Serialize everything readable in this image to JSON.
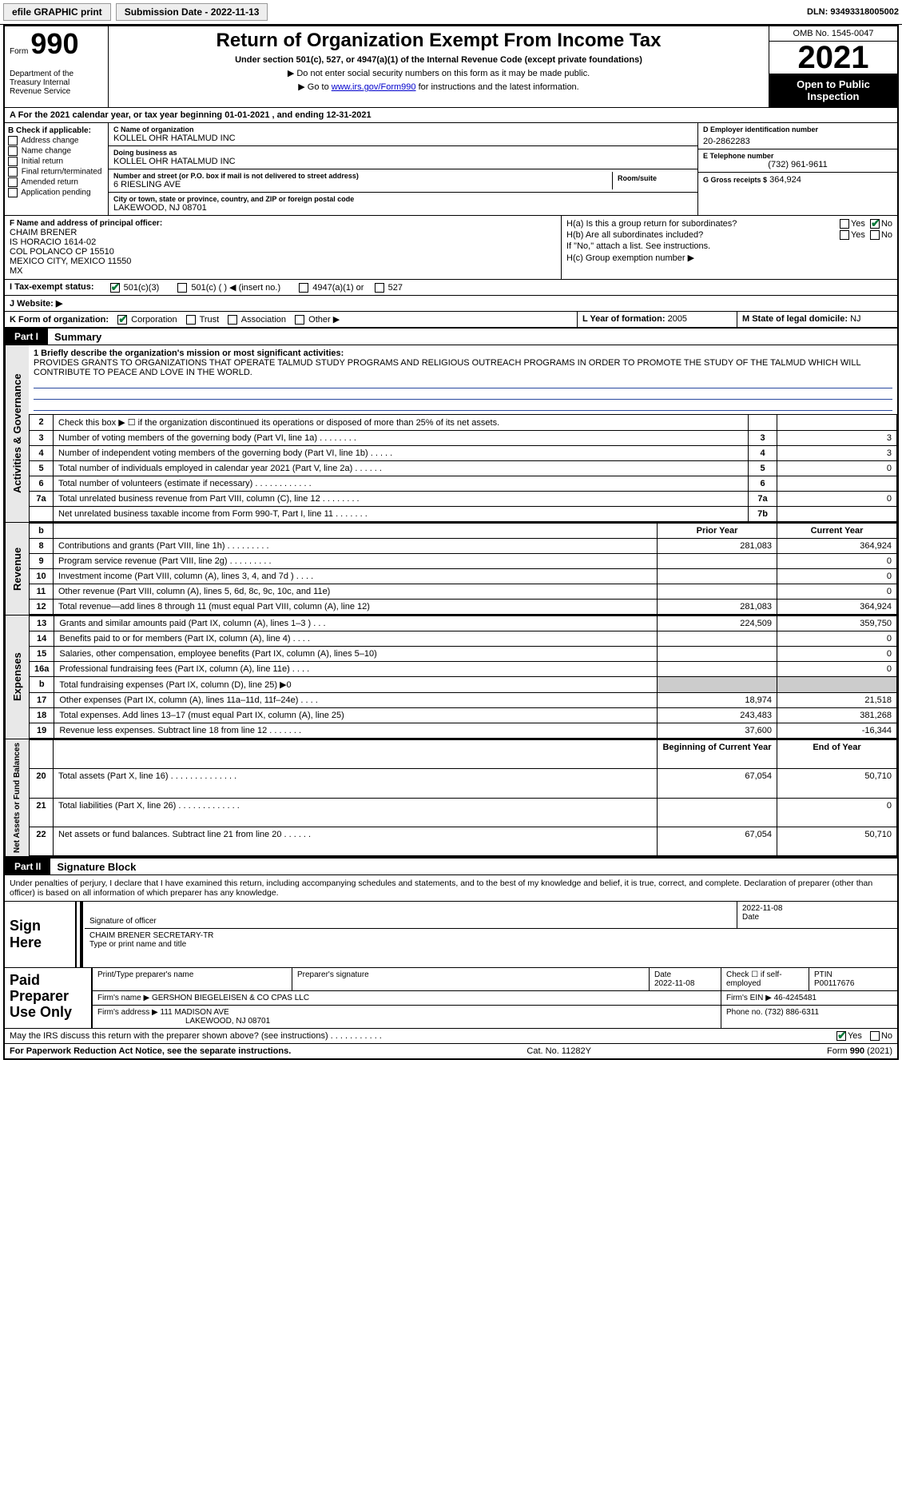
{
  "topbar": {
    "efile": "efile GRAPHIC print",
    "submission": "Submission Date - 2022-11-13",
    "dln_label": "DLN:",
    "dln": "93493318005002"
  },
  "header": {
    "form_label": "Form",
    "form_number": "990",
    "dept": "Department of the Treasury Internal Revenue Service",
    "title": "Return of Organization Exempt From Income Tax",
    "subtitle": "Under section 501(c), 527, or 4947(a)(1) of the Internal Revenue Code (except private foundations)",
    "instr1": "▶ Do not enter social security numbers on this form as it may be made public.",
    "instr2_pre": "▶ Go to ",
    "instr2_link": "www.irs.gov/Form990",
    "instr2_post": " for instructions and the latest information.",
    "omb": "OMB No. 1545-0047",
    "year": "2021",
    "open_public": "Open to Public Inspection"
  },
  "cal_year": "A For the 2021 calendar year, or tax year beginning 01-01-2021   , and ending 12-31-2021",
  "box_b": {
    "head": "B Check if applicable:",
    "items": [
      "Address change",
      "Name change",
      "Initial return",
      "Final return/terminated",
      "Amended return",
      "Application pending"
    ]
  },
  "box_c": {
    "name_lbl": "C Name of organization",
    "name": "KOLLEL OHR HATALMUD INC",
    "dba_lbl": "Doing business as",
    "dba": "KOLLEL OHR HATALMUD INC",
    "street_lbl": "Number and street (or P.O. box if mail is not delivered to street address)",
    "street": "6 RIESLING AVE",
    "room_lbl": "Room/suite",
    "city_lbl": "City or town, state or province, country, and ZIP or foreign postal code",
    "city": "LAKEWOOD, NJ  08701"
  },
  "box_d": {
    "lbl": "D Employer identification number",
    "val": "20-2862283"
  },
  "box_e": {
    "lbl": "E Telephone number",
    "val": "(732) 961-9611"
  },
  "box_g": {
    "lbl": "G Gross receipts $",
    "val": "364,924"
  },
  "box_f": {
    "lbl": "F  Name and address of principal officer:",
    "lines": [
      "CHAIM BRENER",
      "IS HORACIO 1614-02",
      "COL POLANCO CP 15510",
      "MEXICO CITY, MEXICO  11550",
      "MX"
    ]
  },
  "box_h": {
    "ha": "H(a)  Is this a group return for subordinates?",
    "hb": "H(b)  Are all subordinates included?",
    "hb_note": "If \"No,\" attach a list. See instructions.",
    "hc": "H(c)  Group exemption number ▶",
    "yes": "Yes",
    "no": "No"
  },
  "box_i": {
    "lbl": "I   Tax-exempt status:",
    "opts": [
      "501(c)(3)",
      "501(c) (  ) ◀ (insert no.)",
      "4947(a)(1) or",
      "527"
    ]
  },
  "box_j": {
    "lbl": "J  Website: ▶"
  },
  "box_k": {
    "lbl": "K Form of organization:",
    "opts": [
      "Corporation",
      "Trust",
      "Association",
      "Other ▶"
    ]
  },
  "box_l": {
    "lbl": "L Year of formation:",
    "val": "2005"
  },
  "box_m": {
    "lbl": "M State of legal domicile:",
    "val": "NJ"
  },
  "part1": {
    "tab": "Part I",
    "title": "Summary"
  },
  "mission": {
    "q1": "1  Briefly describe the organization's mission or most significant activities:",
    "text": "PROVIDES GRANTS TO ORGANIZATIONS THAT OPERATE TALMUD STUDY PROGRAMS AND RELIGIOUS OUTREACH PROGRAMS IN ORDER TO PROMOTE THE STUDY OF THE TALMUD WHICH WILL CONTRIBUTE TO PEACE AND LOVE IN THE WORLD."
  },
  "lines_ag": [
    {
      "n": "2",
      "t": "Check this box ▶ ☐  if the organization discontinued its operations or disposed of more than 25% of its net assets.",
      "mini": "",
      "v": ""
    },
    {
      "n": "3",
      "t": "Number of voting members of the governing body (Part VI, line 1a)   .   .   .   .   .   .   .   .",
      "mini": "3",
      "v": "3"
    },
    {
      "n": "4",
      "t": "Number of independent voting members of the governing body (Part VI, line 1b)   .   .   .   .   .",
      "mini": "4",
      "v": "3"
    },
    {
      "n": "5",
      "t": "Total number of individuals employed in calendar year 2021 (Part V, line 2a)   .   .   .   .   .   .",
      "mini": "5",
      "v": "0"
    },
    {
      "n": "6",
      "t": "Total number of volunteers (estimate if necessary)   .   .   .   .   .   .   .   .   .   .   .   .",
      "mini": "6",
      "v": ""
    },
    {
      "n": "7a",
      "t": "Total unrelated business revenue from Part VIII, column (C), line 12   .   .   .   .   .   .   .   .",
      "mini": "7a",
      "v": "0"
    },
    {
      "n": "",
      "t": "Net unrelated business taxable income from Form 990-T, Part I, line 11   .   .   .   .   .   .   .",
      "mini": "7b",
      "v": ""
    }
  ],
  "col_headers": {
    "b": "b",
    "prior": "Prior Year",
    "current": "Current Year"
  },
  "lines_rev": [
    {
      "n": "8",
      "t": "Contributions and grants (Part VIII, line 1h)   .   .   .   .   .   .   .   .   .",
      "p": "281,083",
      "c": "364,924"
    },
    {
      "n": "9",
      "t": "Program service revenue (Part VIII, line 2g)   .   .   .   .   .   .   .   .   .",
      "p": "",
      "c": "0"
    },
    {
      "n": "10",
      "t": "Investment income (Part VIII, column (A), lines 3, 4, and 7d )   .   .   .   .",
      "p": "",
      "c": "0"
    },
    {
      "n": "11",
      "t": "Other revenue (Part VIII, column (A), lines 5, 6d, 8c, 9c, 10c, and 11e)",
      "p": "",
      "c": "0"
    },
    {
      "n": "12",
      "t": "Total revenue—add lines 8 through 11 (must equal Part VIII, column (A), line 12)",
      "p": "281,083",
      "c": "364,924"
    }
  ],
  "lines_exp": [
    {
      "n": "13",
      "t": "Grants and similar amounts paid (Part IX, column (A), lines 1–3 )   .   .   .",
      "p": "224,509",
      "c": "359,750"
    },
    {
      "n": "14",
      "t": "Benefits paid to or for members (Part IX, column (A), line 4)   .   .   .   .",
      "p": "",
      "c": "0"
    },
    {
      "n": "15",
      "t": "Salaries, other compensation, employee benefits (Part IX, column (A), lines 5–10)",
      "p": "",
      "c": "0"
    },
    {
      "n": "16a",
      "t": "Professional fundraising fees (Part IX, column (A), line 11e)   .   .   .   .",
      "p": "",
      "c": "0"
    },
    {
      "n": "b",
      "t": "Total fundraising expenses (Part IX, column (D), line 25) ▶0",
      "p": "GREY",
      "c": "GREY"
    },
    {
      "n": "17",
      "t": "Other expenses (Part IX, column (A), lines 11a–11d, 11f–24e)   .   .   .   .",
      "p": "18,974",
      "c": "21,518"
    },
    {
      "n": "18",
      "t": "Total expenses. Add lines 13–17 (must equal Part IX, column (A), line 25)",
      "p": "243,483",
      "c": "381,268"
    },
    {
      "n": "19",
      "t": "Revenue less expenses. Subtract line 18 from line 12   .   .   .   .   .   .   .",
      "p": "37,600",
      "c": "-16,344"
    }
  ],
  "col_headers2": {
    "begin": "Beginning of Current Year",
    "end": "End of Year"
  },
  "lines_net": [
    {
      "n": "20",
      "t": "Total assets (Part X, line 16)   .   .   .   .   .   .   .   .   .   .   .   .   .   .",
      "p": "67,054",
      "c": "50,710"
    },
    {
      "n": "21",
      "t": "Total liabilities (Part X, line 26)   .   .   .   .   .   .   .   .   .   .   .   .   .",
      "p": "",
      "c": "0"
    },
    {
      "n": "22",
      "t": "Net assets or fund balances. Subtract line 21 from line 20   .   .   .   .   .   .",
      "p": "67,054",
      "c": "50,710"
    }
  ],
  "side_labels": {
    "ag": "Activities & Governance",
    "rev": "Revenue",
    "exp": "Expenses",
    "net": "Net Assets or Fund Balances"
  },
  "part2": {
    "tab": "Part II",
    "title": "Signature Block"
  },
  "sig": {
    "penalty": "Under penalties of perjury, I declare that I have examined this return, including accompanying schedules and statements, and to the best of my knowledge and belief, it is true, correct, and complete. Declaration of preparer (other than officer) is based on all information of which preparer has any knowledge.",
    "sign_here": "Sign Here",
    "sig_officer": "Signature of officer",
    "date": "2022-11-08",
    "date_lbl": "Date",
    "name_title": "CHAIM BRENER  SECRETARY-TR",
    "name_lbl": "Type or print name and title"
  },
  "paid": {
    "label": "Paid Preparer Use Only",
    "r1": {
      "a": "Print/Type preparer's name",
      "b": "Preparer's signature",
      "c_lbl": "Date",
      "c": "2022-11-08",
      "d": "Check ☐ if self-employed",
      "e_lbl": "PTIN",
      "e": "P00117676"
    },
    "r2": {
      "a_lbl": "Firm's name    ▶",
      "a": "GERSHON BIEGELEISEN & CO CPAS LLC",
      "b_lbl": "Firm's EIN ▶",
      "b": "46-4245481"
    },
    "r3": {
      "a_lbl": "Firm's address ▶",
      "a1": "111 MADISON AVE",
      "a2": "LAKEWOOD, NJ  08701",
      "b_lbl": "Phone no.",
      "b": "(732) 886-6311"
    }
  },
  "discuss": {
    "q": "May the IRS discuss this return with the preparer shown above? (see instructions)   .   .   .   .   .   .   .   .   .   .   .",
    "yes": "Yes",
    "no": "No"
  },
  "footer": {
    "left": "For Paperwork Reduction Act Notice, see the separate instructions.",
    "mid": "Cat. No. 11282Y",
    "right": "Form 990 (2021)"
  }
}
